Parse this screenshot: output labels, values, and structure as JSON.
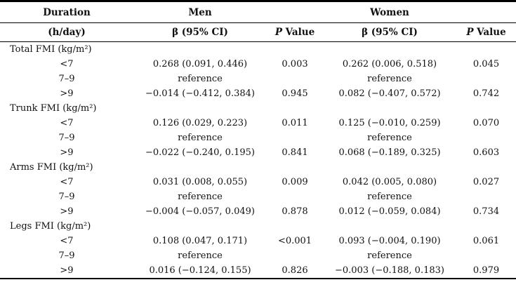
{
  "table": {
    "header": {
      "duration": "Duration",
      "duration_unit": "(h/day)",
      "men": "Men",
      "women": "Women",
      "men_beta_ci": "β (95% CI)",
      "women_beta_ci": "β (95% CI)",
      "p_italic": "P",
      "value_word": "Value"
    },
    "sections": [
      {
        "title": "Total FMI (kg/m²)",
        "rows": [
          {
            "duration": "<7",
            "men_beta": "0.268 (0.091, 0.446)",
            "men_p": "0.003",
            "women_beta": "0.262 (0.006, 0.518)",
            "women_p": "0.045"
          },
          {
            "duration": "7–9",
            "men_beta": "reference",
            "men_p": "",
            "women_beta": "reference",
            "women_p": ""
          },
          {
            "duration": ">9",
            "men_beta": "−0.014 (−0.412, 0.384)",
            "men_p": "0.945",
            "women_beta": "0.082 (−0.407, 0.572)",
            "women_p": "0.742"
          }
        ]
      },
      {
        "title": "Trunk FMI (kg/m²)",
        "rows": [
          {
            "duration": "<7",
            "men_beta": "0.126 (0.029, 0.223)",
            "men_p": "0.011",
            "women_beta": "0.125 (−0.010, 0.259)",
            "women_p": "0.070"
          },
          {
            "duration": "7–9",
            "men_beta": "reference",
            "men_p": "",
            "women_beta": "reference",
            "women_p": ""
          },
          {
            "duration": ">9",
            "men_beta": "−0.022 (−0.240, 0.195)",
            "men_p": "0.841",
            "women_beta": "0.068 (−0.189, 0.325)",
            "women_p": "0.603"
          }
        ]
      },
      {
        "title": "Arms FMI (kg/m²)",
        "rows": [
          {
            "duration": "<7",
            "men_beta": "0.031 (0.008, 0.055)",
            "men_p": "0.009",
            "women_beta": "0.042 (0.005, 0.080)",
            "women_p": "0.027"
          },
          {
            "duration": "7–9",
            "men_beta": "reference",
            "men_p": "",
            "women_beta": "reference",
            "women_p": ""
          },
          {
            "duration": ">9",
            "men_beta": "−0.004 (−0.057, 0.049)",
            "men_p": "0.878",
            "women_beta": "0.012 (−0.059, 0.084)",
            "women_p": "0.734"
          }
        ]
      },
      {
        "title": "Legs FMI (kg/m²)",
        "rows": [
          {
            "duration": "<7",
            "men_beta": "0.108 (0.047, 0.171)",
            "men_p": "<0.001",
            "women_beta": "0.093 (−0.004, 0.190)",
            "women_p": "0.061"
          },
          {
            "duration": "7–9",
            "men_beta": "reference",
            "men_p": "",
            "women_beta": "reference",
            "women_p": ""
          },
          {
            "duration": ">9",
            "men_beta": "0.016 (−0.124, 0.155)",
            "men_p": "0.826",
            "women_beta": "−0.003 (−0.188, 0.183)",
            "women_p": "0.979"
          }
        ]
      }
    ]
  }
}
